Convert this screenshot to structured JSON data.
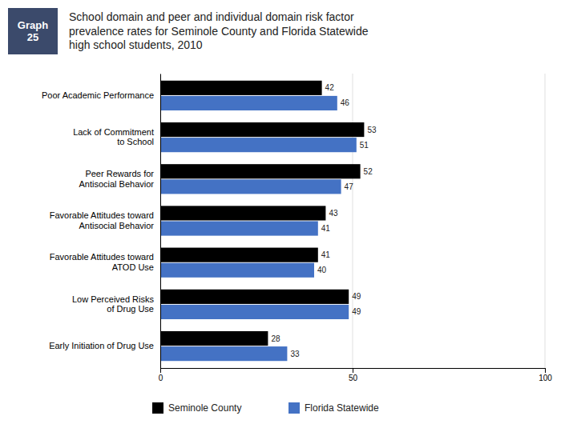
{
  "chart_data": {
    "type": "bar",
    "orientation": "horizontal",
    "title": "School domain and peer and individual domain risk factor\nprevalence rates for Seminole County and Florida Statewide\nhigh school students, 2010",
    "annotations": [
      "Graph\n25"
    ],
    "categories": [
      "Poor Academic Performance",
      "Lack of Commitment\nto School",
      "Peer Rewards for\nAntisocial Behavior",
      "Favorable Attitudes toward\nAntisocial Behavior",
      "Favorable Attitudes toward\nATOD Use",
      "Low Perceived Risks\nof Drug Use",
      "Early Initiation of Drug Use"
    ],
    "series": [
      {
        "name": "Seminole County",
        "color": "#000000",
        "values": [
          42,
          53,
          52,
          43,
          41,
          49,
          28
        ]
      },
      {
        "name": "Florida Statewide",
        "color": "#4472C4",
        "values": [
          46,
          51,
          47,
          41,
          40,
          49,
          33
        ]
      }
    ],
    "xlim": [
      0,
      100
    ],
    "xticks": [
      0,
      50,
      100
    ],
    "grid": true,
    "data_labels": true,
    "legend": "bottom"
  }
}
